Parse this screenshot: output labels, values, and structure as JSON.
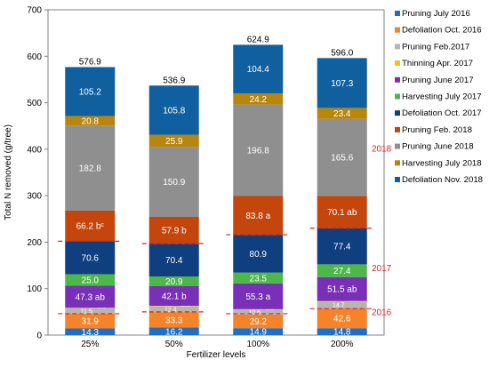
{
  "chart_data": {
    "type": "bar",
    "stacked": true,
    "title": "",
    "xlabel": "Fertilizer levels",
    "ylabel": "Total N removed (g/tree)",
    "ylim": [
      0,
      700
    ],
    "yticks": [
      "0",
      "100",
      "200",
      "300",
      "400",
      "500",
      "600",
      "700"
    ],
    "grid": false,
    "legend_position": "right",
    "categories": [
      "25%",
      "50%",
      "100%",
      "200%"
    ],
    "totals": [
      576.9,
      536.9,
      624.9,
      596.0
    ],
    "total_labels": [
      "576.9",
      "536.9",
      "624.9",
      "596.0"
    ],
    "series": [
      {
        "name": "Pruning July 2016",
        "color": "#1f6fc4",
        "values": [
          14.3,
          16.2,
          14.9,
          14.8
        ],
        "labels": [
          "14.3",
          "16.2",
          "14.9",
          "14.8"
        ]
      },
      {
        "name": "Defoliation Oct. 2016",
        "color": "#f4832a",
        "values": [
          31.9,
          33.3,
          29.2,
          42.6
        ],
        "labels": [
          "31.9",
          "33.3",
          "29.2",
          "42.6"
        ]
      },
      {
        "name": "Pruning Feb.2017",
        "color": "#b5b5b5",
        "values": [
          11.5,
          12.4,
          10.6,
          14.7
        ],
        "labels": [
          "11.5",
          "12.4",
          "10.6",
          "14.7"
        ]
      },
      {
        "name": "Thinning Apr. 2017",
        "color": "#f2c313",
        "values": [
          1.1,
          1.2,
          1.1,
          1.3
        ],
        "labels": [
          "1.1",
          "1.2",
          "1.1",
          "1.3"
        ]
      },
      {
        "name": "Pruning June 2017",
        "color": "#7a2fb8",
        "values": [
          47.3,
          42.1,
          55.3,
          51.5
        ],
        "labels": [
          "47.3 ab",
          "42.1 b",
          "55.3 a",
          "51.5 ab"
        ]
      },
      {
        "name": "Harvesting July 2017",
        "color": "#4cb848",
        "values": [
          25.0,
          20.9,
          23.5,
          27.4
        ],
        "labels": [
          "25.0",
          "20.9",
          "23.5",
          "27.4"
        ]
      },
      {
        "name": "Defoliation Oct. 2017",
        "color": "#0f3f7f",
        "values": [
          70.6,
          70.4,
          80.9,
          77.4
        ],
        "labels": [
          "70.6",
          "70.4",
          "80.9",
          "77.4"
        ]
      },
      {
        "name": "Pruning Feb. 2018",
        "color": "#c4460d",
        "values": [
          66.2,
          57.9,
          83.8,
          70.1
        ],
        "labels": [
          "66.2 bᶜ",
          "57.9 b",
          "83.8 a",
          "70.1 ab"
        ]
      },
      {
        "name": "Pruning June 2018",
        "color": "#8f8f8f",
        "values": [
          182.8,
          150.9,
          196.8,
          165.6
        ],
        "labels": [
          "182.8",
          "150.9",
          "196.8",
          "165.6"
        ]
      },
      {
        "name": "Harvesting July 2018",
        "color": "#b8860b",
        "values": [
          20.8,
          25.9,
          24.2,
          23.4
        ],
        "labels": [
          "20.8",
          "25.9",
          "24.2",
          "23.4"
        ]
      },
      {
        "name": "Defoliation Nov. 2018",
        "color": "#1060a0",
        "values": [
          105.2,
          105.8,
          104.4,
          107.3
        ],
        "labels": [
          "105.2",
          "105.8",
          "104.4",
          "107.3"
        ]
      }
    ],
    "year_annotations": [
      {
        "text": "2016",
        "y": 50
      },
      {
        "text": "2017",
        "y": 144
      },
      {
        "text": "2018",
        "y": 402
      }
    ],
    "year_boundaries": [
      {
        "value": [
          46,
          50,
          46,
          57
        ]
      },
      {
        "value": [
          202,
          197,
          216,
          230
        ]
      }
    ]
  }
}
